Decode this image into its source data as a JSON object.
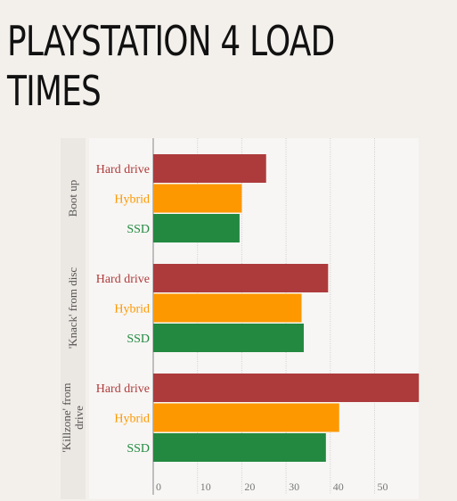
{
  "title": "PLAYSTATION 4 LOAD TIMES",
  "chart_data": {
    "type": "bar",
    "orientation": "horizontal",
    "title": "PLAYSTATION 4 LOAD TIMES",
    "xlim": [
      0,
      60
    ],
    "x_ticks": [
      0,
      10,
      20,
      30,
      40,
      50
    ],
    "grid": true,
    "groups": [
      {
        "label": "Boot up",
        "bars": [
          {
            "category": "Hard drive",
            "value": 25.5
          },
          {
            "category": "Hybrid",
            "value": 20
          },
          {
            "category": "SSD",
            "value": 19.5
          }
        ]
      },
      {
        "label": "'Knack' from disc",
        "bars": [
          {
            "category": "Hard drive",
            "value": 39.5
          },
          {
            "category": "Hybrid",
            "value": 33.5
          },
          {
            "category": "SSD",
            "value": 34
          }
        ]
      },
      {
        "label": "'Killzone' from drive",
        "label_lines": [
          "'Killzone' from",
          "drive"
        ],
        "bars": [
          {
            "category": "Hard drive",
            "value": 60
          },
          {
            "category": "Hybrid",
            "value": 42
          },
          {
            "category": "SSD",
            "value": 39
          }
        ]
      }
    ],
    "colors": {
      "Hard drive": "#ae3b3c",
      "Hybrid": "#fd9800",
      "SSD": "#238940"
    }
  }
}
